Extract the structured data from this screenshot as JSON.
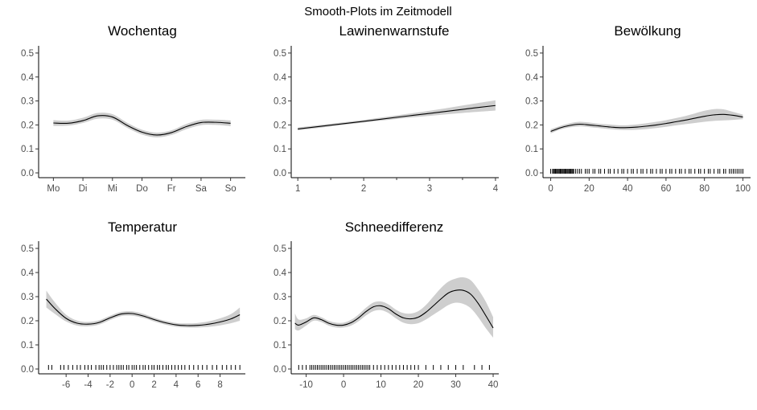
{
  "figure_title": "Smooth-Plots im Zeitmodell",
  "chart_data": [
    {
      "type": "line",
      "title": "Wochentag",
      "x_axis": {
        "kind": "categorical",
        "categories": [
          "Mo",
          "Di",
          "Mi",
          "Do",
          "Fr",
          "Sa",
          "So"
        ],
        "range": [
          0.5,
          7.5
        ]
      },
      "y_axis": {
        "range": [
          -0.02,
          0.53
        ],
        "ticks": [
          0.0,
          0.1,
          0.2,
          0.3,
          0.4,
          0.5
        ],
        "tick_labels": [
          "0.0",
          "0.1",
          "0.2",
          "0.3",
          "0.4",
          "0.5"
        ]
      },
      "series": [
        {
          "x": [
            1,
            1.5,
            2,
            2.5,
            3,
            3.5,
            4,
            4.5,
            5,
            5.5,
            6,
            6.5,
            7
          ],
          "y": [
            0.208,
            0.207,
            0.218,
            0.238,
            0.233,
            0.198,
            0.17,
            0.158,
            0.168,
            0.193,
            0.21,
            0.211,
            0.207
          ],
          "lower": [
            0.196,
            0.197,
            0.208,
            0.226,
            0.222,
            0.188,
            0.16,
            0.148,
            0.158,
            0.182,
            0.199,
            0.2,
            0.195
          ],
          "upper": [
            0.22,
            0.218,
            0.23,
            0.25,
            0.245,
            0.209,
            0.18,
            0.168,
            0.178,
            0.204,
            0.221,
            0.222,
            0.219
          ]
        }
      ],
      "rug": []
    },
    {
      "type": "line",
      "title": "Lawinenwarnstufe",
      "x_axis": {
        "kind": "numeric",
        "range": [
          0.9,
          4.05
        ],
        "ticks": [
          1,
          2,
          3,
          4
        ],
        "tick_labels": [
          "1",
          "2",
          "3",
          "4"
        ],
        "minor_ticks": [
          1.5,
          2.5,
          3.5
        ]
      },
      "y_axis": {
        "range": [
          -0.02,
          0.53
        ],
        "ticks": [
          0.0,
          0.1,
          0.2,
          0.3,
          0.4,
          0.5
        ],
        "tick_labels": [
          "0.0",
          "0.1",
          "0.2",
          "0.3",
          "0.4",
          "0.5"
        ]
      },
      "series": [
        {
          "x": [
            1,
            1.5,
            2,
            2.5,
            3,
            3.5,
            4
          ],
          "y": [
            0.183,
            0.199,
            0.215,
            0.232,
            0.248,
            0.265,
            0.281
          ],
          "lower": [
            0.177,
            0.194,
            0.21,
            0.225,
            0.238,
            0.25,
            0.26
          ],
          "upper": [
            0.189,
            0.205,
            0.221,
            0.24,
            0.259,
            0.281,
            0.303
          ]
        }
      ],
      "rug": []
    },
    {
      "type": "line",
      "title": "Bewölkung",
      "x_axis": {
        "kind": "numeric",
        "range": [
          -4,
          104
        ],
        "ticks": [
          0,
          20,
          40,
          60,
          80,
          100
        ],
        "tick_labels": [
          "0",
          "20",
          "40",
          "60",
          "80",
          "100"
        ]
      },
      "y_axis": {
        "range": [
          -0.02,
          0.53
        ],
        "ticks": [
          0.0,
          0.1,
          0.2,
          0.3,
          0.4,
          0.5
        ],
        "tick_labels": [
          "0.0",
          "0.1",
          "0.2",
          "0.3",
          "0.4",
          "0.5"
        ]
      },
      "series": [
        {
          "x": [
            0,
            5,
            10,
            15,
            20,
            25,
            30,
            35,
            40,
            45,
            50,
            55,
            60,
            65,
            70,
            75,
            80,
            85,
            90,
            95,
            100
          ],
          "y": [
            0.173,
            0.188,
            0.198,
            0.203,
            0.2,
            0.196,
            0.192,
            0.189,
            0.189,
            0.191,
            0.195,
            0.2,
            0.206,
            0.213,
            0.22,
            0.228,
            0.236,
            0.242,
            0.244,
            0.24,
            0.233
          ],
          "lower": [
            0.165,
            0.181,
            0.19,
            0.194,
            0.191,
            0.187,
            0.183,
            0.18,
            0.179,
            0.18,
            0.183,
            0.187,
            0.192,
            0.198,
            0.203,
            0.208,
            0.213,
            0.217,
            0.219,
            0.221,
            0.224
          ],
          "upper": [
            0.182,
            0.196,
            0.207,
            0.213,
            0.21,
            0.205,
            0.202,
            0.199,
            0.199,
            0.202,
            0.207,
            0.213,
            0.22,
            0.228,
            0.237,
            0.248,
            0.259,
            0.266,
            0.265,
            0.254,
            0.243
          ]
        }
      ],
      "rug": [
        0,
        1,
        1.5,
        2,
        2.5,
        3,
        3.5,
        4,
        4.5,
        5,
        5.5,
        6,
        6.5,
        7,
        7.5,
        8,
        8.5,
        9,
        9.5,
        10,
        10.5,
        11,
        11.5,
        12,
        13,
        14,
        15,
        16,
        18,
        19,
        20,
        22,
        23,
        25,
        26,
        28,
        30,
        31,
        33,
        35,
        37,
        38,
        40,
        42,
        43,
        45,
        47,
        48,
        50,
        52,
        53,
        55,
        57,
        58,
        60,
        62,
        63,
        65,
        67,
        68,
        70,
        72,
        73,
        75,
        77,
        78,
        80,
        82,
        83,
        85,
        87,
        88,
        90,
        91,
        93,
        94,
        95,
        96,
        97,
        98,
        99,
        100
      ]
    },
    {
      "type": "line",
      "title": "Temperatur",
      "x_axis": {
        "kind": "numeric",
        "range": [
          -8.5,
          10.3
        ],
        "ticks": [
          -6,
          -4,
          -2,
          0,
          2,
          4,
          6,
          8
        ],
        "tick_labels": [
          "-6",
          "-4",
          "-2",
          "0",
          "2",
          "4",
          "6",
          "8"
        ]
      },
      "y_axis": {
        "range": [
          -0.02,
          0.53
        ],
        "ticks": [
          0.0,
          0.1,
          0.2,
          0.3,
          0.4,
          0.5
        ],
        "tick_labels": [
          "0.0",
          "0.1",
          "0.2",
          "0.3",
          "0.4",
          "0.5"
        ]
      },
      "series": [
        {
          "x": [
            -7.8,
            -7,
            -6,
            -5,
            -4,
            -3,
            -2,
            -1,
            0,
            1,
            2,
            3,
            4,
            5,
            6,
            7,
            8,
            9,
            9.8
          ],
          "y": [
            0.29,
            0.25,
            0.21,
            0.19,
            0.186,
            0.193,
            0.212,
            0.228,
            0.23,
            0.22,
            0.205,
            0.192,
            0.183,
            0.18,
            0.181,
            0.186,
            0.195,
            0.208,
            0.225
          ],
          "lower": [
            0.255,
            0.228,
            0.197,
            0.18,
            0.177,
            0.184,
            0.203,
            0.219,
            0.221,
            0.212,
            0.197,
            0.184,
            0.175,
            0.172,
            0.172,
            0.175,
            0.181,
            0.19,
            0.2
          ],
          "upper": [
            0.325,
            0.275,
            0.225,
            0.201,
            0.195,
            0.202,
            0.221,
            0.237,
            0.239,
            0.229,
            0.213,
            0.2,
            0.191,
            0.189,
            0.191,
            0.198,
            0.21,
            0.228,
            0.255
          ]
        }
      ],
      "rug": [
        -7.6,
        -7.3,
        -6.5,
        -6.2,
        -5.8,
        -5.4,
        -5.0,
        -4.7,
        -4.3,
        -4.0,
        -3.7,
        -3.3,
        -3.0,
        -2.8,
        -2.6,
        -2.3,
        -2.0,
        -1.7,
        -1.4,
        -1.2,
        -1.0,
        -0.8,
        -0.5,
        -0.3,
        0.0,
        0.2,
        0.4,
        0.7,
        1.0,
        1.2,
        1.5,
        1.8,
        2.0,
        2.3,
        2.5,
        2.8,
        3.1,
        3.3,
        3.6,
        3.9,
        4.2,
        4.5,
        4.8,
        5.2,
        5.6,
        6.0,
        6.4,
        6.8,
        7.3,
        7.7,
        8.2,
        8.6,
        9.0,
        9.4,
        9.8
      ]
    },
    {
      "type": "line",
      "title": "Schneedifferenz",
      "x_axis": {
        "kind": "numeric",
        "range": [
          -14,
          41.5
        ],
        "ticks": [
          -10,
          0,
          10,
          20,
          30,
          40
        ],
        "tick_labels": [
          "-10",
          "0",
          "10",
          "20",
          "30",
          "40"
        ]
      },
      "y_axis": {
        "range": [
          -0.02,
          0.53
        ],
        "ticks": [
          0.0,
          0.1,
          0.2,
          0.3,
          0.4,
          0.5
        ],
        "tick_labels": [
          "0.0",
          "0.1",
          "0.2",
          "0.3",
          "0.4",
          "0.5"
        ]
      },
      "series": [
        {
          "x": [
            -13,
            -12,
            -10,
            -8,
            -6,
            -4,
            -2,
            0,
            2,
            4,
            6,
            8,
            10,
            12,
            14,
            16,
            18,
            20,
            22,
            24,
            26,
            28,
            30,
            32,
            34,
            36,
            38,
            40
          ],
          "y": [
            0.19,
            0.182,
            0.195,
            0.212,
            0.205,
            0.19,
            0.182,
            0.182,
            0.192,
            0.212,
            0.238,
            0.258,
            0.262,
            0.25,
            0.228,
            0.212,
            0.208,
            0.215,
            0.235,
            0.262,
            0.29,
            0.315,
            0.326,
            0.326,
            0.31,
            0.272,
            0.222,
            0.17
          ],
          "lower": [
            0.165,
            0.16,
            0.18,
            0.2,
            0.195,
            0.18,
            0.172,
            0.172,
            0.18,
            0.198,
            0.222,
            0.24,
            0.244,
            0.232,
            0.21,
            0.192,
            0.186,
            0.19,
            0.205,
            0.225,
            0.245,
            0.265,
            0.275,
            0.27,
            0.252,
            0.215,
            0.17,
            0.13
          ],
          "upper": [
            0.23,
            0.205,
            0.21,
            0.224,
            0.215,
            0.2,
            0.192,
            0.192,
            0.204,
            0.226,
            0.254,
            0.276,
            0.28,
            0.268,
            0.246,
            0.232,
            0.23,
            0.24,
            0.265,
            0.3,
            0.335,
            0.362,
            0.375,
            0.38,
            0.368,
            0.33,
            0.28,
            0.215
          ]
        }
      ],
      "rug": [
        -12,
        -11,
        -10,
        -9,
        -8.5,
        -8,
        -7.5,
        -7,
        -6.5,
        -6,
        -5.5,
        -5,
        -4.5,
        -4,
        -3.5,
        -3,
        -2.5,
        -2,
        -1.5,
        -1,
        -0.5,
        0,
        0.5,
        1,
        1.5,
        2,
        2.5,
        3,
        3.5,
        4,
        4.5,
        5,
        5.5,
        6,
        6.5,
        7,
        8,
        9,
        10,
        11,
        12,
        13,
        14,
        15,
        16,
        17,
        18,
        19,
        20,
        22,
        24,
        26,
        28,
        30,
        32,
        35,
        37,
        39
      ]
    }
  ]
}
